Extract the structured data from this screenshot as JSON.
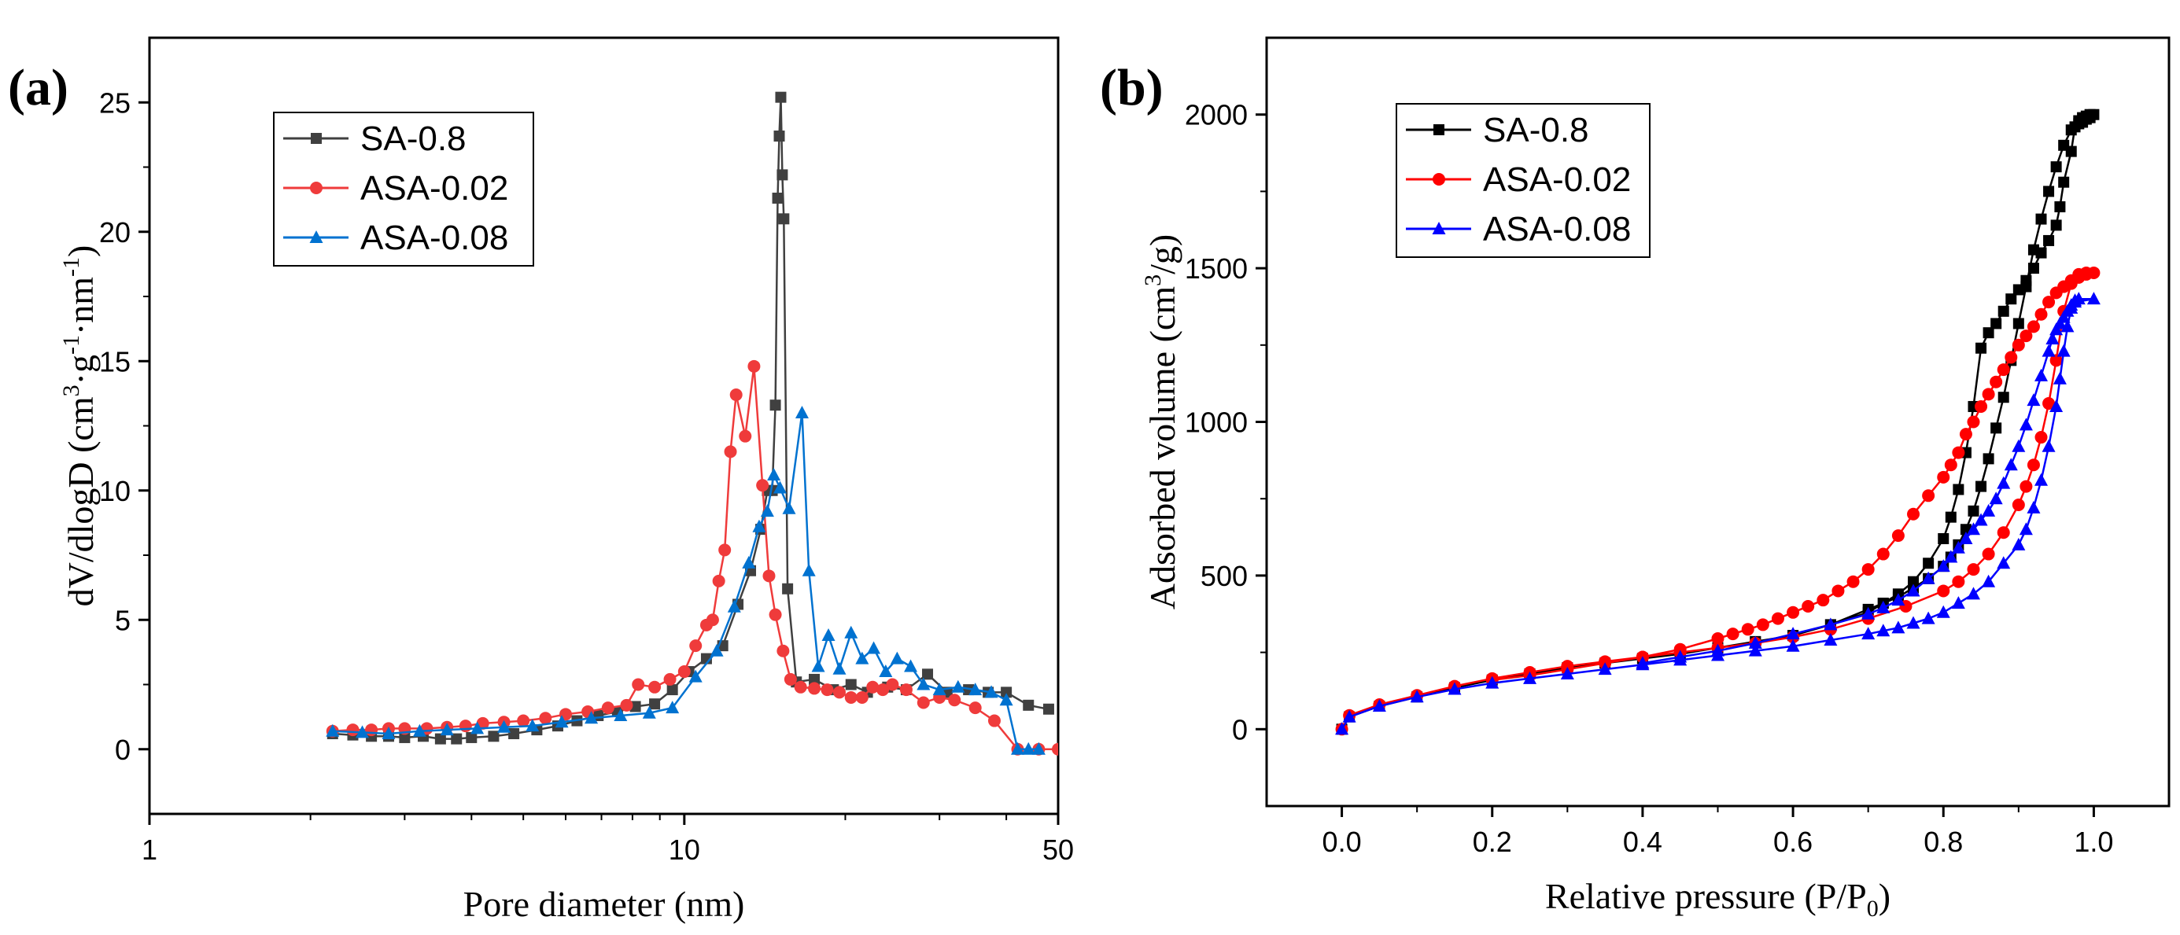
{
  "chart_data": [
    {
      "panel_label": "(a)",
      "type": "line",
      "xscale": "log",
      "xlabel": "Pore diameter (nm)",
      "ylabel_parts": [
        "dV/dlogD (cm",
        "3",
        "·g",
        "-1",
        "·nm",
        "-1",
        ")"
      ],
      "xlim": [
        1,
        50
      ],
      "ylim": [
        -2.5,
        27.5
      ],
      "xticks": [
        1,
        10,
        50
      ],
      "yticks": [
        0,
        5,
        10,
        15,
        20,
        25
      ],
      "legend_position": "top-left",
      "series": [
        {
          "name": "SA-0.8",
          "color": "#404040",
          "marker": "square",
          "x": [
            2.2,
            2.4,
            2.6,
            2.8,
            3.0,
            3.25,
            3.5,
            3.75,
            4.0,
            4.4,
            4.8,
            5.3,
            5.8,
            6.3,
            6.9,
            7.5,
            8.1,
            8.8,
            9.5,
            10.2,
            11.0,
            11.8,
            12.6,
            13.3,
            13.9,
            14.3,
            14.6,
            14.8,
            14.95,
            15.05,
            15.15,
            15.25,
            15.35,
            15.6,
            16.2,
            17.5,
            19.0,
            20.5,
            22.0,
            24.0,
            26.0,
            28.5,
            31.0,
            34.0,
            37.0,
            40.0,
            44.0,
            48.0
          ],
          "y": [
            0.6,
            0.55,
            0.5,
            0.5,
            0.45,
            0.5,
            0.4,
            0.4,
            0.45,
            0.5,
            0.6,
            0.75,
            0.9,
            1.1,
            1.3,
            1.45,
            1.65,
            1.75,
            2.3,
            3.0,
            3.5,
            4.0,
            5.6,
            6.9,
            8.5,
            10.0,
            10.0,
            13.3,
            21.3,
            23.7,
            25.2,
            22.2,
            20.5,
            6.2,
            2.6,
            2.7,
            2.3,
            2.5,
            2.2,
            2.4,
            2.3,
            2.9,
            2.2,
            2.3,
            2.2,
            2.2,
            1.7,
            1.55
          ]
        },
        {
          "name": "ASA-0.02",
          "color": "#ef3b3b",
          "marker": "circle",
          "x": [
            2.2,
            2.4,
            2.6,
            2.8,
            3.0,
            3.3,
            3.6,
            3.9,
            4.2,
            4.6,
            5.0,
            5.5,
            6.0,
            6.6,
            7.2,
            7.8,
            8.2,
            8.8,
            9.4,
            10.0,
            10.5,
            11.0,
            11.3,
            11.6,
            11.9,
            12.2,
            12.5,
            13.0,
            13.5,
            14.0,
            14.4,
            14.8,
            15.3,
            15.8,
            16.5,
            17.5,
            18.5,
            19.5,
            20.5,
            21.5,
            22.5,
            23.5,
            24.5,
            26.0,
            28.0,
            30.0,
            32.0,
            35.0,
            38.0,
            42.0,
            46.0,
            50.0
          ],
          "y": [
            0.7,
            0.75,
            0.75,
            0.8,
            0.8,
            0.8,
            0.85,
            0.9,
            1.0,
            1.05,
            1.1,
            1.2,
            1.35,
            1.45,
            1.6,
            1.7,
            2.5,
            2.4,
            2.7,
            3.0,
            4.0,
            4.8,
            5.0,
            6.5,
            7.7,
            11.5,
            13.7,
            12.1,
            14.8,
            10.2,
            6.7,
            5.2,
            3.8,
            2.7,
            2.4,
            2.35,
            2.3,
            2.2,
            2.0,
            2.0,
            2.4,
            2.3,
            2.5,
            2.3,
            1.8,
            2.0,
            1.9,
            1.6,
            1.1,
            0.0,
            0.0,
            0.0
          ]
        },
        {
          "name": "ASA-0.08",
          "color": "#0072d0",
          "marker": "triangle",
          "x": [
            2.2,
            2.5,
            2.8,
            3.2,
            3.6,
            4.1,
            4.6,
            5.2,
            5.9,
            6.7,
            7.6,
            8.6,
            9.5,
            10.5,
            11.5,
            12.4,
            13.2,
            13.8,
            14.3,
            14.7,
            15.1,
            15.7,
            16.6,
            17.1,
            17.8,
            18.6,
            19.5,
            20.5,
            21.5,
            22.6,
            23.8,
            25.0,
            26.5,
            28.0,
            30.0,
            32.5,
            35.0,
            37.5,
            40.0,
            42.0,
            44.0,
            46.0
          ],
          "y": [
            0.7,
            0.65,
            0.6,
            0.7,
            0.75,
            0.8,
            0.85,
            0.9,
            1.05,
            1.2,
            1.3,
            1.4,
            1.6,
            2.8,
            3.8,
            5.5,
            7.2,
            8.6,
            9.2,
            10.6,
            10.1,
            9.3,
            13.0,
            6.9,
            3.2,
            4.4,
            3.1,
            4.5,
            3.5,
            3.9,
            3.0,
            3.5,
            3.2,
            2.5,
            2.3,
            2.4,
            2.3,
            2.2,
            1.9,
            0.0,
            0.0,
            0.0
          ]
        }
      ]
    },
    {
      "panel_label": "(b)",
      "type": "line",
      "xlabel_parts": [
        "Relative pressure (P/P",
        "0",
        ")"
      ],
      "ylabel_parts": [
        "Adsorbed volume (cm",
        "3",
        "/g)"
      ],
      "xlim": [
        -0.1,
        1.1
      ],
      "ylim": [
        -250,
        2250
      ],
      "xticks": [
        0.0,
        0.2,
        0.4,
        0.6,
        0.8,
        1.0
      ],
      "xtick_labels": [
        "0.0",
        "0.2",
        "0.4",
        "0.6",
        "0.8",
        "1.0"
      ],
      "yticks": [
        0,
        500,
        1000,
        1500,
        2000
      ],
      "legend_position": "top-left",
      "series": [
        {
          "name": "SA-0.8",
          "color": "#000000",
          "marker": "square",
          "x": [
            0.0,
            0.01,
            0.05,
            0.1,
            0.15,
            0.2,
            0.25,
            0.3,
            0.35,
            0.4,
            0.45,
            0.5,
            0.55,
            0.6,
            0.65,
            0.7,
            0.72,
            0.74,
            0.76,
            0.78,
            0.8,
            0.81,
            0.82,
            0.83,
            0.84,
            0.85,
            0.86,
            0.87,
            0.88,
            0.89,
            0.9,
            0.91,
            0.92,
            0.93,
            0.94,
            0.95,
            0.96,
            0.97,
            0.98,
            0.985,
            0.99,
            0.995,
            1.0,
            0.995,
            0.99,
            0.985,
            0.98,
            0.975,
            0.97,
            0.96,
            0.955,
            0.95,
            0.94,
            0.93,
            0.92,
            0.91,
            0.9,
            0.89,
            0.88,
            0.87,
            0.86,
            0.85,
            0.84,
            0.83,
            0.82,
            0.81,
            0.8,
            0.78,
            0.76,
            0.74,
            0.72,
            0.7,
            0.65,
            0.6,
            0.55,
            0.5,
            0.45,
            0.4
          ],
          "y": [
            0,
            40,
            75,
            105,
            135,
            160,
            180,
            200,
            215,
            230,
            245,
            265,
            285,
            305,
            340,
            390,
            410,
            430,
            460,
            490,
            530,
            560,
            600,
            650,
            710,
            790,
            880,
            980,
            1080,
            1200,
            1320,
            1440,
            1560,
            1660,
            1750,
            1830,
            1900,
            1950,
            1980,
            1990,
            1995,
            2000,
            2000,
            1990,
            1985,
            1975,
            1970,
            1960,
            1880,
            1780,
            1700,
            1640,
            1590,
            1550,
            1500,
            1460,
            1430,
            1400,
            1360,
            1320,
            1290,
            1240,
            1050,
            900,
            780,
            690,
            620,
            540,
            480,
            440,
            410,
            380,
            340,
            305,
            285,
            265,
            245,
            230
          ]
        },
        {
          "name": "ASA-0.02",
          "color": "#ff0000",
          "marker": "circle",
          "x": [
            0.0,
            0.01,
            0.05,
            0.1,
            0.15,
            0.2,
            0.25,
            0.3,
            0.35,
            0.4,
            0.45,
            0.5,
            0.55,
            0.6,
            0.65,
            0.7,
            0.75,
            0.8,
            0.82,
            0.84,
            0.86,
            0.88,
            0.9,
            0.91,
            0.92,
            0.93,
            0.94,
            0.95,
            0.96,
            0.97,
            0.98,
            0.99,
            1.0,
            0.99,
            0.98,
            0.97,
            0.96,
            0.95,
            0.94,
            0.93,
            0.92,
            0.91,
            0.9,
            0.89,
            0.88,
            0.87,
            0.86,
            0.85,
            0.84,
            0.83,
            0.82,
            0.81,
            0.8,
            0.78,
            0.76,
            0.74,
            0.72,
            0.7,
            0.68,
            0.66,
            0.64,
            0.62,
            0.6,
            0.58,
            0.56,
            0.54,
            0.52,
            0.5,
            0.45,
            0.4,
            0.35,
            0.3,
            0.25,
            0.2
          ],
          "y": [
            0,
            45,
            80,
            110,
            140,
            165,
            185,
            205,
            220,
            235,
            250,
            265,
            280,
            300,
            325,
            360,
            400,
            450,
            480,
            520,
            570,
            640,
            730,
            790,
            860,
            950,
            1060,
            1200,
            1360,
            1450,
            1480,
            1485,
            1485,
            1480,
            1470,
            1460,
            1440,
            1420,
            1390,
            1350,
            1310,
            1280,
            1250,
            1210,
            1170,
            1130,
            1090,
            1050,
            1000,
            960,
            900,
            860,
            820,
            760,
            700,
            630,
            570,
            520,
            480,
            450,
            420,
            400,
            380,
            360,
            340,
            325,
            310,
            295,
            260,
            235,
            215,
            195,
            175,
            160
          ]
        },
        {
          "name": "ASA-0.08",
          "color": "#0000ff",
          "marker": "triangle",
          "x": [
            0.0,
            0.01,
            0.05,
            0.1,
            0.15,
            0.2,
            0.25,
            0.3,
            0.35,
            0.4,
            0.45,
            0.5,
            0.55,
            0.6,
            0.65,
            0.7,
            0.72,
            0.74,
            0.76,
            0.78,
            0.8,
            0.82,
            0.84,
            0.86,
            0.88,
            0.9,
            0.91,
            0.92,
            0.93,
            0.94,
            0.95,
            0.955,
            0.96,
            0.965,
            0.97,
            0.975,
            0.98,
            1.0,
            0.975,
            0.97,
            0.965,
            0.96,
            0.955,
            0.95,
            0.945,
            0.94,
            0.93,
            0.92,
            0.91,
            0.9,
            0.89,
            0.88,
            0.87,
            0.86,
            0.85,
            0.84,
            0.83,
            0.82,
            0.81,
            0.8,
            0.78,
            0.76,
            0.74,
            0.72,
            0.7,
            0.65,
            0.6,
            0.55,
            0.5,
            0.45,
            0.4
          ],
          "y": [
            0,
            40,
            75,
            105,
            130,
            150,
            165,
            180,
            195,
            210,
            225,
            240,
            255,
            270,
            290,
            310,
            320,
            330,
            345,
            360,
            380,
            410,
            440,
            480,
            540,
            600,
            650,
            720,
            810,
            920,
            1050,
            1140,
            1230,
            1310,
            1370,
            1395,
            1400,
            1400,
            1390,
            1380,
            1360,
            1340,
            1320,
            1300,
            1270,
            1230,
            1150,
            1070,
            990,
            920,
            860,
            800,
            750,
            710,
            680,
            650,
            620,
            590,
            560,
            530,
            490,
            450,
            420,
            395,
            375,
            340,
            310,
            280,
            255,
            235,
            215
          ]
        }
      ]
    }
  ]
}
